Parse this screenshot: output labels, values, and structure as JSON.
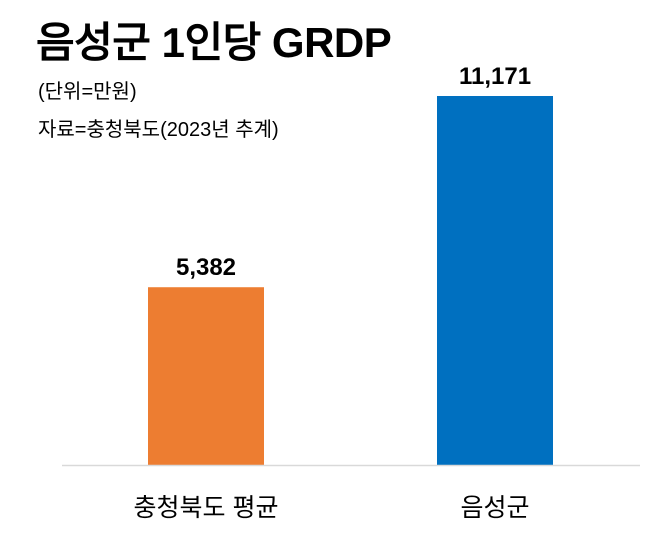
{
  "chart_data": {
    "type": "bar",
    "title": "음성군 1인당 GRDP",
    "subtitle": "(단위=만원)",
    "source": "자료=충청북도(2023년 추계)",
    "categories": [
      "충청북도 평균",
      "음성군"
    ],
    "values": [
      5382,
      11171
    ],
    "value_labels": [
      "5,382",
      "11,171"
    ],
    "colors": [
      "#ED7D31",
      "#0070C0"
    ],
    "axis_color": "#D9D9D9",
    "grid": false,
    "legend": "none"
  }
}
